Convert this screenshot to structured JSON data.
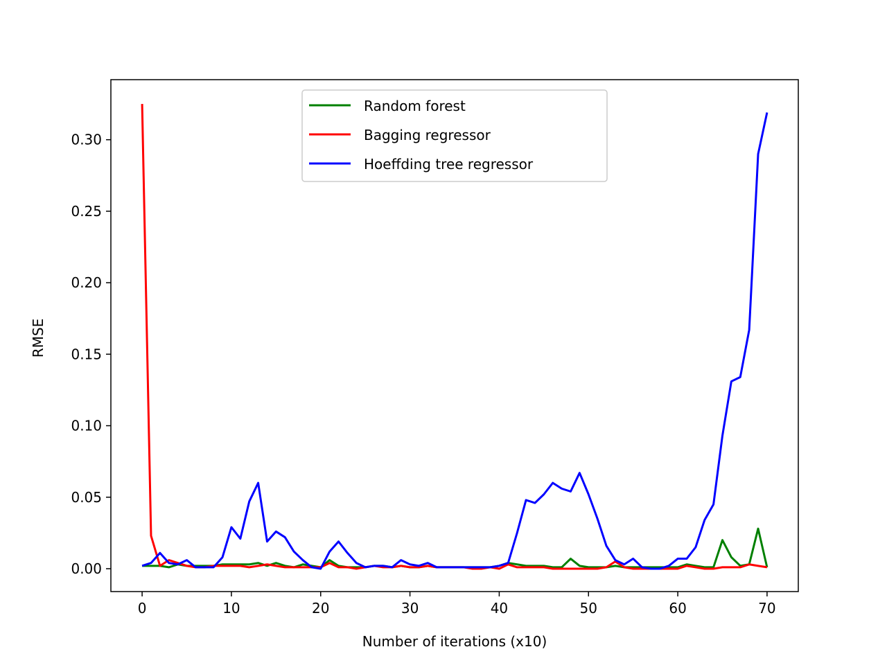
{
  "chart_data": {
    "type": "line",
    "title": "",
    "xlabel": "Number of iterations (x10)",
    "ylabel": "RMSE",
    "xlim": [
      -3.5,
      73.5
    ],
    "ylim": [
      -0.016,
      0.342
    ],
    "xticks": [
      0,
      10,
      20,
      30,
      40,
      50,
      60,
      70
    ],
    "yticks": [
      0.0,
      0.05,
      0.1,
      0.15,
      0.2,
      0.25,
      0.3
    ],
    "ytick_labels": [
      "0.00",
      "0.05",
      "0.10",
      "0.15",
      "0.20",
      "0.25",
      "0.30"
    ],
    "grid": false,
    "legend_position": "top-center",
    "x": [
      0,
      1,
      2,
      3,
      4,
      5,
      6,
      7,
      8,
      9,
      10,
      11,
      12,
      13,
      14,
      15,
      16,
      17,
      18,
      19,
      20,
      21,
      22,
      23,
      24,
      25,
      26,
      27,
      28,
      29,
      30,
      31,
      32,
      33,
      34,
      35,
      36,
      37,
      38,
      39,
      40,
      41,
      42,
      43,
      44,
      45,
      46,
      47,
      48,
      49,
      50,
      51,
      52,
      53,
      54,
      55,
      56,
      57,
      58,
      59,
      60,
      61,
      62,
      63,
      64,
      65,
      66,
      67,
      68,
      69,
      70
    ],
    "series": [
      {
        "name": "Random forest",
        "color": "#008000",
        "values": [
          0.002,
          0.002,
          0.002,
          0.001,
          0.003,
          0.002,
          0.002,
          0.002,
          0.002,
          0.003,
          0.003,
          0.003,
          0.003,
          0.004,
          0.002,
          0.004,
          0.002,
          0.001,
          0.003,
          0.002,
          0.001,
          0.006,
          0.002,
          0.001,
          0.001,
          0.001,
          0.002,
          0.002,
          0.001,
          0.002,
          0.001,
          0.001,
          0.002,
          0.001,
          0.001,
          0.001,
          0.001,
          0.001,
          0.001,
          0.001,
          0.002,
          0.004,
          0.003,
          0.002,
          0.002,
          0.002,
          0.001,
          0.001,
          0.007,
          0.002,
          0.001,
          0.001,
          0.001,
          0.002,
          0.001,
          0.001,
          0.001,
          0.001,
          0.001,
          0.001,
          0.001,
          0.003,
          0.002,
          0.001,
          0.001,
          0.02,
          0.008,
          0.002,
          0.003,
          0.028,
          0.001
        ]
      },
      {
        "name": "Bagging regressor",
        "color": "#ff0000",
        "values": [
          0.325,
          0.023,
          0.002,
          0.006,
          0.004,
          0.002,
          0.001,
          0.001,
          0.002,
          0.002,
          0.002,
          0.002,
          0.001,
          0.002,
          0.003,
          0.002,
          0.001,
          0.001,
          0.001,
          0.001,
          0.001,
          0.004,
          0.001,
          0.001,
          0.0,
          0.001,
          0.002,
          0.001,
          0.001,
          0.002,
          0.001,
          0.001,
          0.002,
          0.001,
          0.001,
          0.001,
          0.001,
          0.0,
          0.0,
          0.001,
          0.0,
          0.003,
          0.001,
          0.001,
          0.001,
          0.001,
          0.0,
          0.0,
          0.0,
          0.0,
          0.0,
          0.0,
          0.001,
          0.005,
          0.001,
          0.0,
          0.0,
          0.0,
          0.0,
          0.0,
          0.0,
          0.002,
          0.001,
          0.0,
          0.0,
          0.001,
          0.001,
          0.001,
          0.003,
          0.002,
          0.001
        ]
      },
      {
        "name": "Hoeffding tree regressor",
        "color": "#0000ff",
        "values": [
          0.002,
          0.004,
          0.011,
          0.004,
          0.003,
          0.006,
          0.001,
          0.001,
          0.001,
          0.008,
          0.029,
          0.021,
          0.047,
          0.06,
          0.019,
          0.026,
          0.022,
          0.012,
          0.006,
          0.001,
          0.0,
          0.012,
          0.019,
          0.011,
          0.004,
          0.001,
          0.002,
          0.002,
          0.001,
          0.006,
          0.003,
          0.002,
          0.004,
          0.001,
          0.001,
          0.001,
          0.001,
          0.001,
          0.001,
          0.001,
          0.002,
          0.004,
          0.025,
          0.048,
          0.046,
          0.052,
          0.06,
          0.056,
          0.054,
          0.067,
          0.052,
          0.035,
          0.016,
          0.006,
          0.003,
          0.007,
          0.001,
          0.0,
          0.0,
          0.002,
          0.007,
          0.007,
          0.015,
          0.034,
          0.045,
          0.093,
          0.131,
          0.134,
          0.167,
          0.29,
          0.319
        ]
      }
    ]
  }
}
